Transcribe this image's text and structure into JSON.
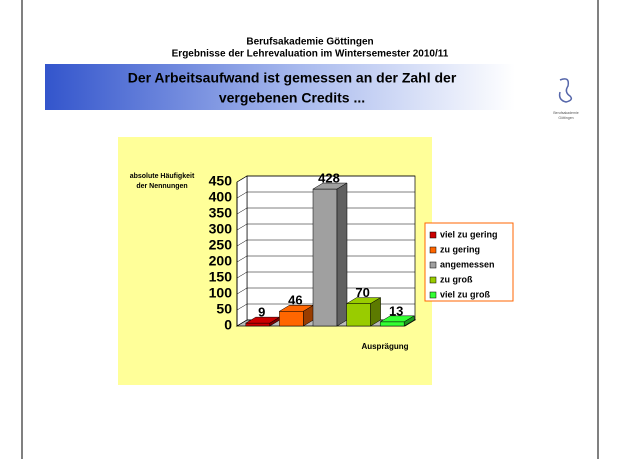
{
  "header": {
    "institution": "Berufsakademie Göttingen",
    "subtitle": "Ergebnisse der Lehrevaluation im Wintersemester 2010/11",
    "title_lines": [
      "Der Arbeitsaufwand ist gemessen an der Zahl der",
      "vergebenen Credits ..."
    ],
    "logo_text": [
      "Berufsakademie",
      "Göttingen"
    ]
  },
  "chart_data": {
    "type": "bar3d",
    "y_label": [
      "absolute Häufigkeit",
      "der Nennungen"
    ],
    "x_label": "Ausprägung",
    "categories": [
      "viel zu gering",
      "zu gering",
      "angemessen",
      "zu groß",
      "viel zu groß"
    ],
    "values": [
      9,
      46,
      428,
      70,
      13
    ],
    "colors": [
      "#cc0000",
      "#ff6600",
      "#a0a0a0",
      "#99cc00",
      "#33ff33"
    ],
    "ylim": [
      0,
      450
    ],
    "yticks": [
      0,
      50,
      100,
      150,
      200,
      250,
      300,
      350,
      400,
      450
    ],
    "legend": "right"
  }
}
